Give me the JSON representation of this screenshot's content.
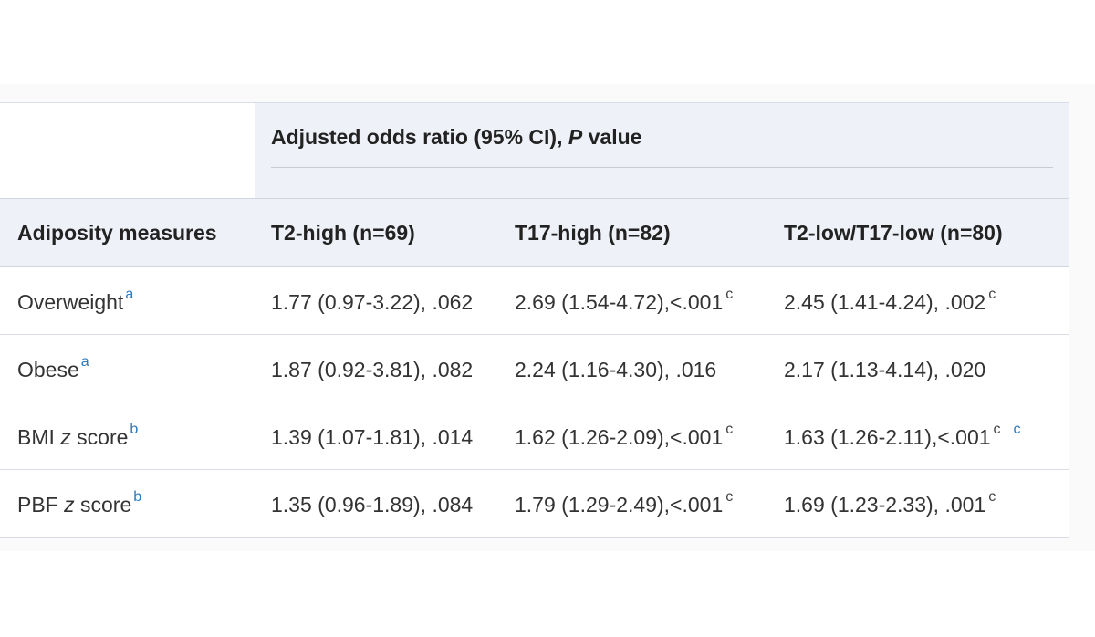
{
  "table": {
    "group_header": {
      "prefix": "Adjusted odds ratio (95% CI), ",
      "italic": "P",
      "suffix": " value"
    },
    "columns": {
      "measure": "Adiposity measures",
      "c1": "T2-high (n=69)",
      "c2": "T17-high (n=82)",
      "c3": "T2-low/T17-low (n=80)"
    },
    "rows": [
      {
        "label": "Overweight",
        "label_italic": "",
        "label_suffix": "",
        "label_fn": "a",
        "c1": "1.77 (0.97-3.22), .062",
        "c1_fn": "",
        "c2": "2.69 (1.54-4.72),<.001",
        "c2_fn": "c",
        "c3": "2.45 (1.41-4.24), .002",
        "c3_fn": "c",
        "c3_fn2": ""
      },
      {
        "label": "Obese",
        "label_italic": "",
        "label_suffix": "",
        "label_fn": "a",
        "c1": "1.87 (0.92-3.81), .082",
        "c1_fn": "",
        "c2": "2.24 (1.16-4.30), .016",
        "c2_fn": "",
        "c3": "2.17 (1.13-4.14), .020",
        "c3_fn": "",
        "c3_fn2": ""
      },
      {
        "label": "BMI ",
        "label_italic": "z",
        "label_suffix": " score",
        "label_fn": "b",
        "c1": "1.39 (1.07-1.81), .014",
        "c1_fn": "",
        "c2": "1.62 (1.26-2.09),<.001",
        "c2_fn": "c",
        "c3": "1.63 (1.26-2.11),<.001",
        "c3_fn": "c",
        "c3_fn2": "c"
      },
      {
        "label": "PBF ",
        "label_italic": "z",
        "label_suffix": " score",
        "label_fn": "b",
        "c1": "1.35 (0.96-1.89), .084",
        "c1_fn": "",
        "c2": "1.79 (1.29-2.49),<.001",
        "c2_fn": "c",
        "c3": "1.69 (1.23-2.33), .001",
        "c3_fn": "c",
        "c3_fn2": ""
      }
    ]
  }
}
